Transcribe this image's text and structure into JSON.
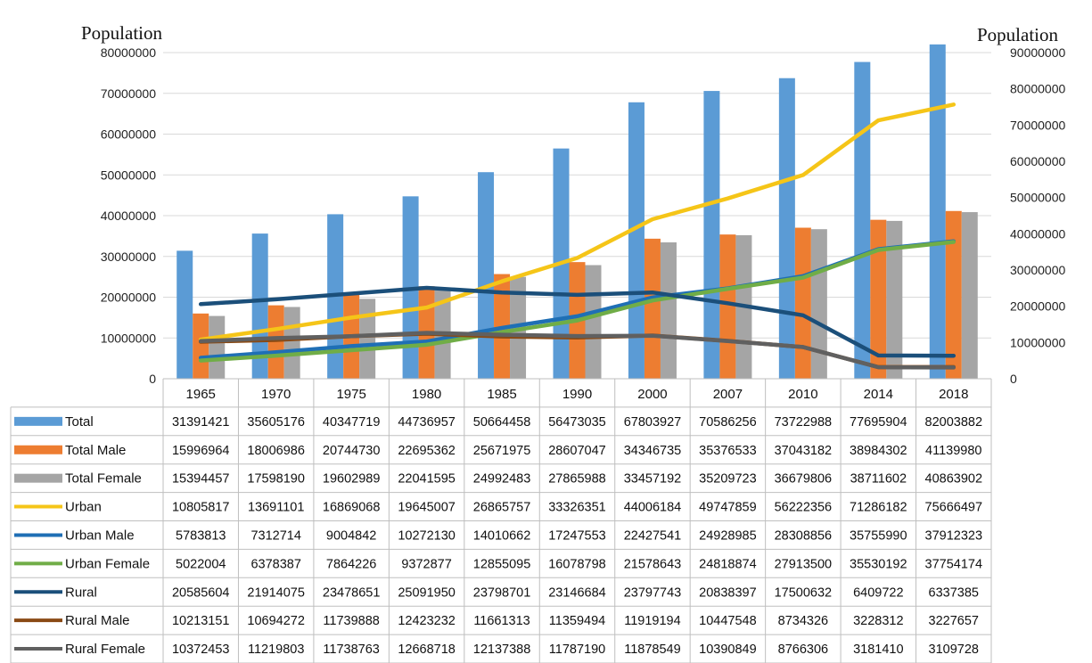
{
  "chart_data": {
    "type": "bar",
    "ylabel_left": "Population",
    "ylabel_right": "Population",
    "ylim_left": [
      0,
      80000000
    ],
    "ylim_right": [
      0,
      90000000
    ],
    "yticks_left": [
      "0",
      "10000000",
      "20000000",
      "30000000",
      "40000000",
      "50000000",
      "60000000",
      "70000000",
      "80000000"
    ],
    "yticks_right": [
      "0",
      "10000000",
      "20000000",
      "30000000",
      "40000000",
      "50000000",
      "60000000",
      "70000000",
      "80000000",
      "90000000"
    ],
    "grid": true,
    "legend": "data-table",
    "categories": [
      "1965",
      "1970",
      "1975",
      "1980",
      "1985",
      "1990",
      "2000",
      "2007",
      "2010",
      "2014",
      "2018"
    ],
    "series": [
      {
        "name": "Total",
        "kind": "bar",
        "axis": "left",
        "color": "#5b9bd5",
        "values": [
          31391421,
          35605176,
          40347719,
          44736957,
          50664458,
          56473035,
          67803927,
          70586256,
          73722988,
          77695904,
          82003882
        ]
      },
      {
        "name": "Total Male",
        "kind": "bar",
        "axis": "left",
        "color": "#ed7d31",
        "values": [
          15996964,
          18006986,
          20744730,
          22695362,
          25671975,
          28607047,
          34346735,
          35376533,
          37043182,
          38984302,
          41139980
        ]
      },
      {
        "name": "Total Female",
        "kind": "bar",
        "axis": "left",
        "color": "#a5a5a5",
        "values": [
          15394457,
          17598190,
          19602989,
          22041595,
          24992483,
          27865988,
          33457192,
          35209723,
          36679806,
          38711602,
          40863902
        ]
      },
      {
        "name": "Urban",
        "kind": "line",
        "axis": "right",
        "color": "#f5c518",
        "values": [
          10805817,
          13691101,
          16869068,
          19645007,
          26865757,
          33326351,
          44006184,
          49747859,
          56222356,
          71286182,
          75666497
        ]
      },
      {
        "name": "Urban Male",
        "kind": "line",
        "axis": "right",
        "color": "#1f6fb5",
        "values": [
          5783813,
          7312714,
          9004842,
          10272130,
          14010662,
          17247553,
          22427541,
          24928985,
          28308856,
          35755990,
          37912323
        ]
      },
      {
        "name": "Urban Female",
        "kind": "line",
        "axis": "right",
        "color": "#70ad47",
        "values": [
          5022004,
          6378387,
          7864226,
          9372877,
          12855095,
          16078798,
          21578643,
          24818874,
          27913500,
          35530192,
          37754174
        ]
      },
      {
        "name": "Rural",
        "kind": "line",
        "axis": "right",
        "color": "#1b4f7a",
        "values": [
          20585604,
          21914075,
          23478651,
          25091950,
          23798701,
          23146684,
          23797743,
          20838397,
          17500632,
          6409722,
          6337385
        ]
      },
      {
        "name": "Rural Male",
        "kind": "line",
        "axis": "right",
        "color": "#8a4a14",
        "values": [
          10213151,
          10694272,
          11739888,
          12423232,
          11661313,
          11359494,
          11919194,
          10447548,
          8734326,
          3228312,
          3227657
        ]
      },
      {
        "name": "Rural Female",
        "kind": "line",
        "axis": "right",
        "color": "#606060",
        "values": [
          10372453,
          11219803,
          11738763,
          12668718,
          12137388,
          11787190,
          11878549,
          10390849,
          8766306,
          3181410,
          3109728
        ]
      }
    ]
  }
}
